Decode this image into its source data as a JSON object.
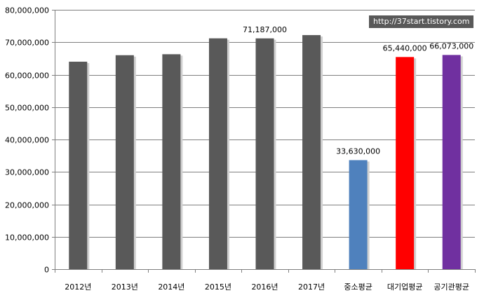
{
  "chart_data": {
    "type": "bar",
    "title": "",
    "xlabel": "",
    "ylabel": "",
    "categories": [
      "2012년",
      "2013년",
      "2014년",
      "2015년",
      "2016년",
      "2017년",
      "중소평균",
      "대기업평균",
      "공기관평균"
    ],
    "values": [
      64000000,
      66000000,
      66300000,
      71200000,
      71187000,
      72200000,
      33630000,
      65440000,
      66073000
    ],
    "bar_colors": [
      "#595959",
      "#595959",
      "#595959",
      "#595959",
      "#595959",
      "#595959",
      "#4f81bd",
      "#ff0000",
      "#7030a0"
    ],
    "data_labels": [
      "",
      "",
      "",
      "",
      "71,187,000",
      "",
      "33,630,000",
      "65,440,000",
      "66,073,000"
    ],
    "ylim": [
      0,
      80000000
    ],
    "yticks": [
      "0",
      "10,000,000",
      "20,000,000",
      "30,000,000",
      "40,000,000",
      "50,000,000",
      "60,000,000",
      "70,000,000",
      "80,000,000"
    ],
    "ytick_values": [
      0,
      10000000,
      20000000,
      30000000,
      40000000,
      50000000,
      60000000,
      70000000,
      80000000
    ],
    "grid": true
  },
  "watermark": "http://37start.tistory.com"
}
